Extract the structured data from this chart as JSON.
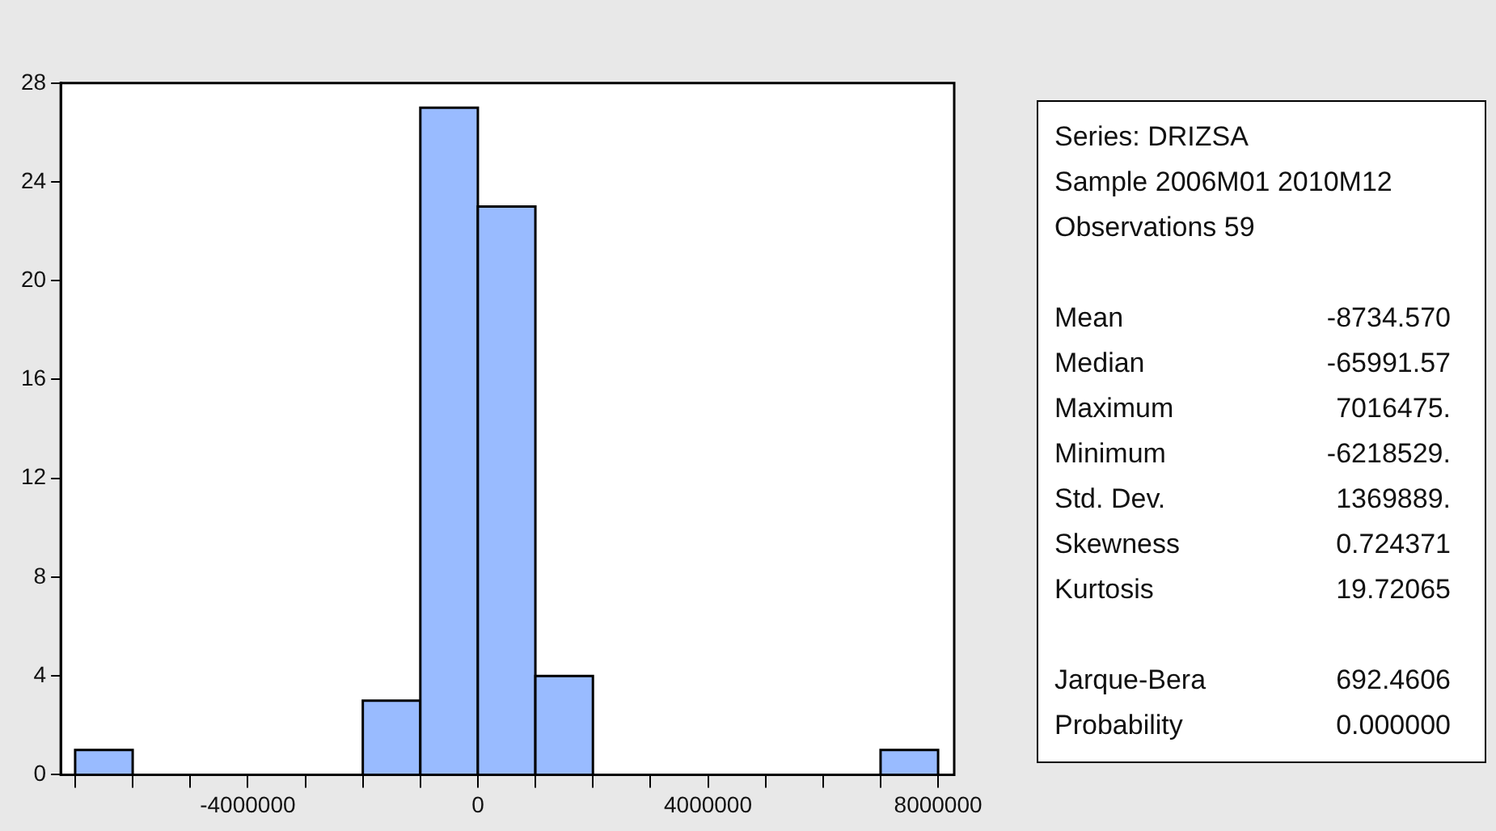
{
  "chart_data": {
    "type": "histogram",
    "bins": [
      -7000000,
      -6000000,
      -5000000,
      -4000000,
      -3000000,
      -2000000,
      -1000000,
      0,
      1000000,
      2000000,
      3000000,
      4000000,
      5000000,
      6000000,
      7000000,
      8000000
    ],
    "values": [
      1,
      0,
      0,
      0,
      0,
      3,
      27,
      23,
      4,
      0,
      0,
      0,
      0,
      0,
      1
    ],
    "color": "#99bbff",
    "xlim": [
      -7250000,
      8280000
    ],
    "xticks": [
      {
        "value": -7000000,
        "label": null
      },
      {
        "value": -6000000,
        "label": null
      },
      {
        "value": -5000000,
        "label": null
      },
      -4000000,
      {
        "value": -3000000,
        "label": null
      },
      {
        "value": -2000000,
        "label": null
      },
      {
        "value": -1000000,
        "label": null
      },
      0,
      {
        "value": 1000000,
        "label": null
      },
      {
        "value": 2000000,
        "label": null
      },
      {
        "value": 3000000,
        "label": null
      },
      4000000,
      {
        "value": 5000000,
        "label": null
      },
      {
        "value": 6000000,
        "label": null
      },
      {
        "value": 7000000,
        "label": null
      },
      8000000
    ],
    "ylim": [
      0,
      28
    ],
    "yticks": [
      0,
      4,
      8,
      12,
      16,
      20,
      24,
      28
    ],
    "grid": false,
    "legend": false,
    "annotations": [
      "Series: DRIZSA",
      "Sample 2006M01 2010M12",
      "Observations 59",
      "Mean -8734.570",
      "Median -65991.57",
      "Maximum 7016475.",
      "Minimum -6218529.",
      "Std. Dev. 1369889.",
      "Skewness 0.724371",
      "Kurtosis 19.72065",
      "Jarque-Bera 692.4606",
      "Probability 0.000000"
    ]
  }
}
